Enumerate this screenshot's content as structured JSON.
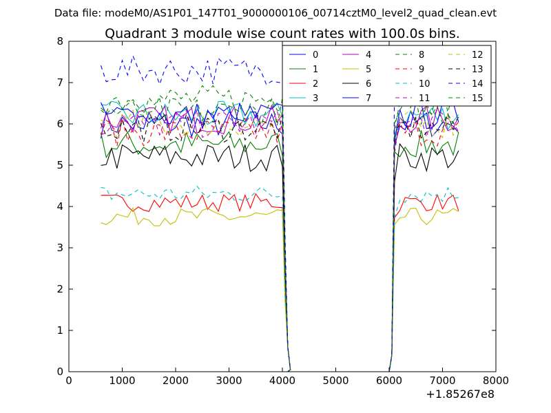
{
  "header_text": "Data file: modeM0/AS1P01_147T01_9000000106_00714cztM0_level2_quad_clean.evt",
  "chart_data": {
    "type": "line",
    "title": "Quadrant 3 module wise count rates with 100.0s bins.",
    "xlabel": "",
    "ylabel": "",
    "x_offset_label": "+1.85267e8",
    "xlim": [
      0,
      8000
    ],
    "ylim": [
      0,
      8
    ],
    "x_ticks": [
      "0",
      "1000",
      "2000",
      "3000",
      "4000",
      "5000",
      "6000",
      "7000",
      "8000"
    ],
    "y_ticks": [
      "0",
      "1",
      "2",
      "3",
      "4",
      "5",
      "6",
      "7",
      "8"
    ],
    "grid": false,
    "legend_position": "top-right",
    "gap": {
      "x": [
        4100,
        4200,
        4300,
        4400,
        4500,
        4600,
        4700,
        4800,
        4900,
        5000,
        5100,
        5200,
        5300,
        5400,
        5500,
        5600,
        5700,
        5800,
        5900,
        6000
      ],
      "note": "all modules ~0 counts between the two data segments"
    },
    "series": [
      {
        "name": "0",
        "color": "#0000ff",
        "dash": "solid",
        "level": 6.0
      },
      {
        "name": "1",
        "color": "#008000",
        "dash": "solid",
        "level": 5.5
      },
      {
        "name": "2",
        "color": "#ff0000",
        "dash": "solid",
        "level": 4.1
      },
      {
        "name": "3",
        "color": "#00bfbf",
        "dash": "solid",
        "level": 6.2
      },
      {
        "name": "4",
        "color": "#bf00bf",
        "dash": "solid",
        "level": 6.1
      },
      {
        "name": "5",
        "color": "#bfbf00",
        "dash": "solid",
        "level": 3.75
      },
      {
        "name": "6",
        "color": "#000000",
        "dash": "solid",
        "level": 5.2
      },
      {
        "name": "7",
        "color": "#0000ff",
        "dash": "solid",
        "level": 6.2
      },
      {
        "name": "8",
        "color": "#008000",
        "dash": "dashed",
        "level": 6.6
      },
      {
        "name": "9",
        "color": "#ff0000",
        "dash": "dashed",
        "level": 5.8
      },
      {
        "name": "10",
        "color": "#00bfbf",
        "dash": "dashed",
        "level": 4.3
      },
      {
        "name": "11",
        "color": "#bf00bf",
        "dash": "dashed",
        "level": 6.0
      },
      {
        "name": "12",
        "color": "#bfbf00",
        "dash": "dashed",
        "level": 6.0
      },
      {
        "name": "13",
        "color": "#000000",
        "dash": "dashed",
        "level": 5.9
      },
      {
        "name": "14",
        "color": "#0000ff",
        "dash": "dashed",
        "level": 7.3
      },
      {
        "name": "15",
        "color": "#008000",
        "dash": "dashed",
        "level": 6.3
      }
    ],
    "x_segment_1": [
      600,
      4000
    ],
    "x_segment_2": [
      6100,
      7300
    ],
    "bin_width": 100
  }
}
